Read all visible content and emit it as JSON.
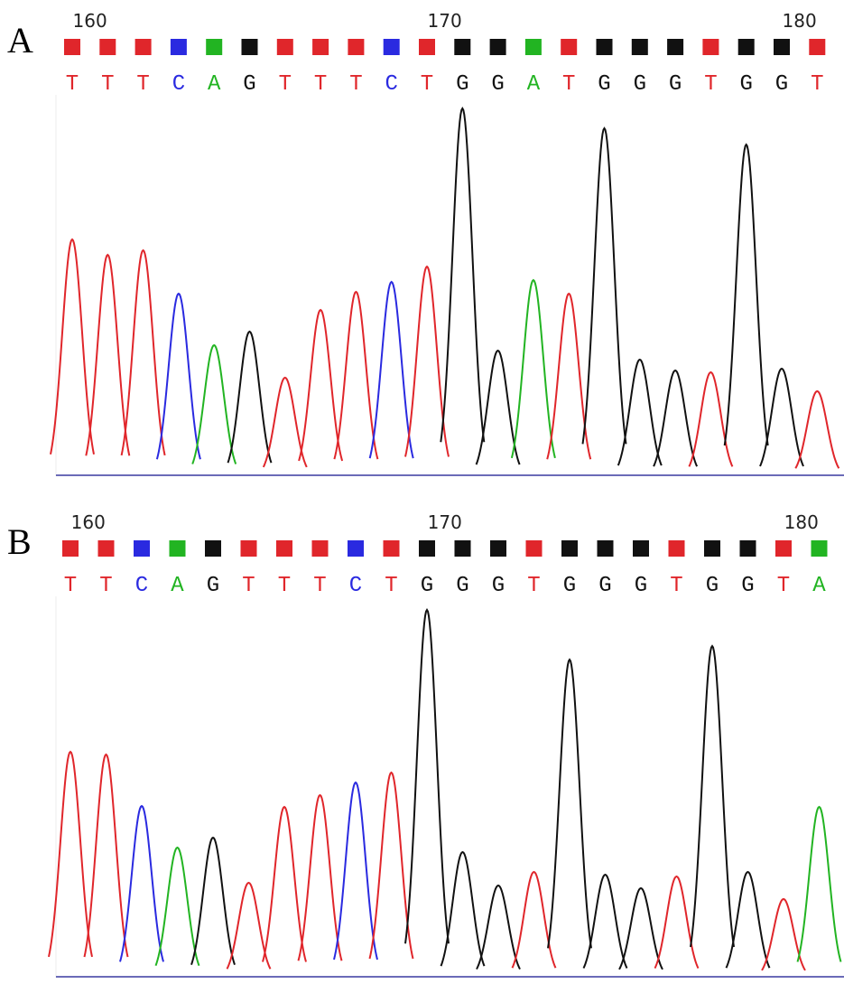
{
  "base_colors": {
    "T": "#e0262b",
    "C": "#2a2ae0",
    "A": "#22b422",
    "G": "#111111"
  },
  "panels": [
    {
      "label": "A",
      "ticks": [
        160,
        170,
        180
      ],
      "bases": [
        "T",
        "T",
        "T",
        "C",
        "A",
        "G",
        "T",
        "T",
        "T",
        "C",
        "T",
        "G",
        "G",
        "A",
        "T",
        "G",
        "G",
        "G",
        "T",
        "G",
        "G",
        "T"
      ],
      "intensities": [
        262,
        245,
        250,
        202,
        145,
        160,
        109,
        184,
        204,
        215,
        232,
        407,
        139,
        217,
        202,
        385,
        129,
        117,
        115,
        367,
        119,
        94
      ]
    },
    {
      "label": "B",
      "ticks": [
        160,
        170,
        180
      ],
      "bases": [
        "T",
        "T",
        "C",
        "A",
        "G",
        "T",
        "T",
        "T",
        "C",
        "T",
        "G",
        "G",
        "G",
        "T",
        "G",
        "G",
        "G",
        "T",
        "G",
        "G",
        "T",
        "A"
      ],
      "intensities": [
        250,
        247,
        190,
        144,
        155,
        105,
        189,
        202,
        216,
        227,
        407,
        139,
        102,
        117,
        352,
        114,
        99,
        112,
        367,
        117,
        87,
        189
      ]
    }
  ]
}
